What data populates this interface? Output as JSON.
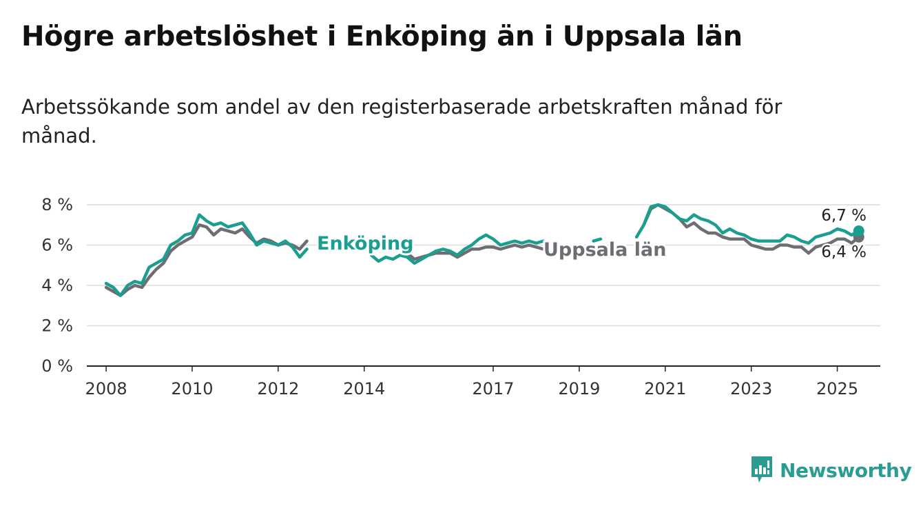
{
  "title": "Högre arbetslöshet i Enköping än i Uppsala län",
  "subtitle": "Arbetssökande som andel av den registerbaserade arbetskraften månad för månad.",
  "brand": {
    "name": "Newsworthy",
    "icon": "bar-chart-logo-icon",
    "color": "#2b9c92"
  },
  "chart_data": {
    "type": "line",
    "title": "Högre arbetslöshet i Enköping än i Uppsala län",
    "subtitle": "Arbetssökande som andel av den registerbaserade arbetskraften månad för månad.",
    "xlabel": "",
    "ylabel": "",
    "x_ticks": [
      "2008",
      "2010",
      "2012",
      "2014",
      "2017",
      "2019",
      "2021",
      "2023",
      "2025"
    ],
    "y_ticks": [
      "0 %",
      "2 %",
      "4 %",
      "6 %",
      "8 %"
    ],
    "ylim": [
      0,
      8.5
    ],
    "grid": true,
    "legend": "direct-labels",
    "series": [
      {
        "name": "Enköping",
        "color": "#1a9e8f",
        "last_value_label": "6,7 %",
        "points": [
          [
            "2008-01",
            4.1
          ],
          [
            "2008-03",
            3.9
          ],
          [
            "2008-05",
            3.5
          ],
          [
            "2008-07",
            4.0
          ],
          [
            "2008-09",
            4.2
          ],
          [
            "2008-11",
            4.1
          ],
          [
            "2009-01",
            4.9
          ],
          [
            "2009-03",
            5.1
          ],
          [
            "2009-05",
            5.3
          ],
          [
            "2009-07",
            6.0
          ],
          [
            "2009-09",
            6.2
          ],
          [
            "2009-11",
            6.5
          ],
          [
            "2010-01",
            6.6
          ],
          [
            "2010-03",
            7.5
          ],
          [
            "2010-05",
            7.2
          ],
          [
            "2010-07",
            7.0
          ],
          [
            "2010-09",
            7.1
          ],
          [
            "2010-11",
            6.9
          ],
          [
            "2011-01",
            7.0
          ],
          [
            "2011-03",
            7.1
          ],
          [
            "2011-05",
            6.6
          ],
          [
            "2011-07",
            6.0
          ],
          [
            "2011-09",
            6.2
          ],
          [
            "2011-11",
            6.1
          ],
          [
            "2012-01",
            6.0
          ],
          [
            "2012-03",
            6.2
          ],
          [
            "2012-05",
            5.9
          ],
          [
            "2012-07",
            5.4
          ],
          [
            "2012-09",
            5.8
          ],
          [
            "2014-03",
            5.5
          ],
          [
            "2014-05",
            5.2
          ],
          [
            "2014-07",
            5.4
          ],
          [
            "2014-09",
            5.3
          ],
          [
            "2014-11",
            5.5
          ],
          [
            "2015-01",
            5.4
          ],
          [
            "2015-03",
            5.1
          ],
          [
            "2015-05",
            5.3
          ],
          [
            "2015-07",
            5.5
          ],
          [
            "2015-09",
            5.7
          ],
          [
            "2015-11",
            5.8
          ],
          [
            "2016-01",
            5.7
          ],
          [
            "2016-03",
            5.5
          ],
          [
            "2016-05",
            5.8
          ],
          [
            "2016-07",
            6.0
          ],
          [
            "2016-09",
            6.3
          ],
          [
            "2016-11",
            6.5
          ],
          [
            "2017-01",
            6.3
          ],
          [
            "2017-03",
            6.0
          ],
          [
            "2017-05",
            6.1
          ],
          [
            "2017-07",
            6.2
          ],
          [
            "2017-09",
            6.1
          ],
          [
            "2017-11",
            6.2
          ],
          [
            "2018-01",
            6.1
          ],
          [
            "2018-03",
            6.2
          ],
          [
            "2019-05",
            6.2
          ],
          [
            "2019-07",
            6.3
          ],
          [
            "2020-05",
            6.4
          ],
          [
            "2020-07",
            7.0
          ],
          [
            "2020-09",
            7.9
          ],
          [
            "2020-11",
            8.0
          ],
          [
            "2021-01",
            7.9
          ],
          [
            "2021-03",
            7.6
          ],
          [
            "2021-05",
            7.3
          ],
          [
            "2021-07",
            7.2
          ],
          [
            "2021-09",
            7.5
          ],
          [
            "2021-11",
            7.3
          ],
          [
            "2022-01",
            7.2
          ],
          [
            "2022-03",
            7.0
          ],
          [
            "2022-05",
            6.6
          ],
          [
            "2022-07",
            6.8
          ],
          [
            "2022-09",
            6.6
          ],
          [
            "2022-11",
            6.5
          ],
          [
            "2023-01",
            6.3
          ],
          [
            "2023-03",
            6.2
          ],
          [
            "2023-05",
            6.2
          ],
          [
            "2023-07",
            6.2
          ],
          [
            "2023-09",
            6.2
          ],
          [
            "2023-11",
            6.5
          ],
          [
            "2024-01",
            6.4
          ],
          [
            "2024-03",
            6.2
          ],
          [
            "2024-05",
            6.1
          ],
          [
            "2024-07",
            6.4
          ],
          [
            "2024-09",
            6.5
          ],
          [
            "2024-11",
            6.6
          ],
          [
            "2025-01",
            6.8
          ],
          [
            "2025-03",
            6.7
          ],
          [
            "2025-05",
            6.5
          ],
          [
            "2025-07",
            6.7
          ]
        ]
      },
      {
        "name": "Uppsala län",
        "color": "#6e6d73",
        "last_value_label": "6,4 %",
        "points": [
          [
            "2008-01",
            3.9
          ],
          [
            "2008-03",
            3.7
          ],
          [
            "2008-05",
            3.5
          ],
          [
            "2008-07",
            3.8
          ],
          [
            "2008-09",
            4.0
          ],
          [
            "2008-11",
            3.9
          ],
          [
            "2009-01",
            4.4
          ],
          [
            "2009-03",
            4.8
          ],
          [
            "2009-05",
            5.1
          ],
          [
            "2009-07",
            5.7
          ],
          [
            "2009-09",
            6.0
          ],
          [
            "2009-11",
            6.2
          ],
          [
            "2010-01",
            6.4
          ],
          [
            "2010-03",
            7.0
          ],
          [
            "2010-05",
            6.9
          ],
          [
            "2010-07",
            6.5
          ],
          [
            "2010-09",
            6.8
          ],
          [
            "2010-11",
            6.7
          ],
          [
            "2011-01",
            6.6
          ],
          [
            "2011-03",
            6.8
          ],
          [
            "2011-05",
            6.4
          ],
          [
            "2011-07",
            6.1
          ],
          [
            "2011-09",
            6.3
          ],
          [
            "2011-11",
            6.2
          ],
          [
            "2012-01",
            6.0
          ],
          [
            "2012-03",
            6.1
          ],
          [
            "2012-05",
            6.0
          ],
          [
            "2012-07",
            5.8
          ],
          [
            "2012-09",
            6.2
          ],
          [
            "2015-01",
            5.6
          ],
          [
            "2015-03",
            5.3
          ],
          [
            "2015-05",
            5.4
          ],
          [
            "2015-07",
            5.5
          ],
          [
            "2015-09",
            5.6
          ],
          [
            "2015-11",
            5.6
          ],
          [
            "2016-01",
            5.6
          ],
          [
            "2016-03",
            5.4
          ],
          [
            "2016-05",
            5.6
          ],
          [
            "2016-07",
            5.8
          ],
          [
            "2016-09",
            5.8
          ],
          [
            "2016-11",
            5.9
          ],
          [
            "2017-01",
            5.9
          ],
          [
            "2017-03",
            5.8
          ],
          [
            "2017-05",
            5.9
          ],
          [
            "2017-07",
            6.0
          ],
          [
            "2017-09",
            5.9
          ],
          [
            "2017-11",
            6.0
          ],
          [
            "2018-01",
            5.9
          ],
          [
            "2018-03",
            5.8
          ],
          [
            "2020-07",
            7.0
          ],
          [
            "2020-09",
            7.8
          ],
          [
            "2020-11",
            8.0
          ],
          [
            "2021-01",
            7.8
          ],
          [
            "2021-03",
            7.6
          ],
          [
            "2021-05",
            7.3
          ],
          [
            "2021-07",
            6.9
          ],
          [
            "2021-09",
            7.1
          ],
          [
            "2021-11",
            6.8
          ],
          [
            "2022-01",
            6.6
          ],
          [
            "2022-03",
            6.6
          ],
          [
            "2022-05",
            6.4
          ],
          [
            "2022-07",
            6.3
          ],
          [
            "2022-09",
            6.3
          ],
          [
            "2022-11",
            6.3
          ],
          [
            "2023-01",
            6.0
          ],
          [
            "2023-03",
            5.9
          ],
          [
            "2023-05",
            5.8
          ],
          [
            "2023-07",
            5.8
          ],
          [
            "2023-09",
            6.0
          ],
          [
            "2023-11",
            6.0
          ],
          [
            "2024-01",
            5.9
          ],
          [
            "2024-03",
            5.9
          ],
          [
            "2024-05",
            5.6
          ],
          [
            "2024-07",
            5.9
          ],
          [
            "2024-09",
            6.0
          ],
          [
            "2024-11",
            6.1
          ],
          [
            "2025-01",
            6.3
          ],
          [
            "2025-03",
            6.3
          ],
          [
            "2025-05",
            6.1
          ],
          [
            "2025-07",
            6.4
          ]
        ]
      }
    ]
  }
}
